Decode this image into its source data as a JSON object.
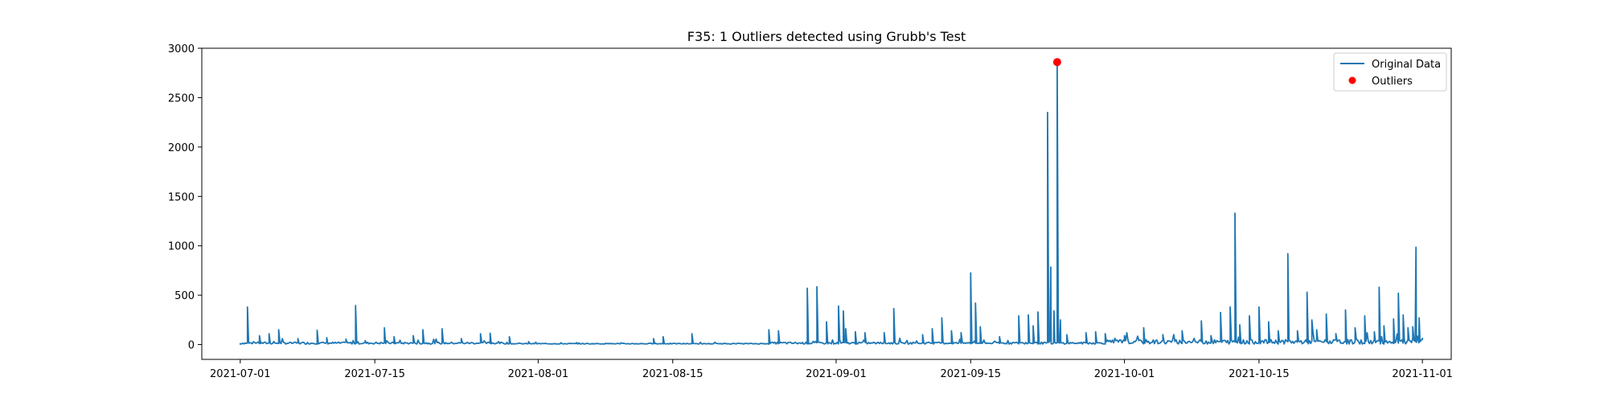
{
  "chart_data": {
    "type": "line",
    "title": "F35: 1 Outliers detected using Grubb's Test",
    "xlabel": "",
    "ylabel": "",
    "x_axis_type": "date",
    "xlim": [
      "2021-06-27",
      "2021-11-04"
    ],
    "ylim": [
      -150,
      3000
    ],
    "yticks": [
      0,
      500,
      1000,
      1500,
      2000,
      2500,
      3000
    ],
    "xticks": [
      "2021-07-01",
      "2021-07-15",
      "2021-08-01",
      "2021-08-15",
      "2021-09-01",
      "2021-09-15",
      "2021-10-01",
      "2021-10-15",
      "2021-11-01"
    ],
    "grid": false,
    "legend": {
      "position": "top-right",
      "entries": [
        "Original Data",
        "Outliers"
      ]
    },
    "colors": {
      "series": "#1f77b4",
      "outlier": "#ff0000"
    },
    "series": [
      {
        "name": "Original Data",
        "baseline_range": [
          "2021-07-01",
          "2021-11-01"
        ],
        "spikes": [
          [
            "2021-07-01",
            5
          ],
          [
            "2021-07-01T18:00",
            380
          ],
          [
            "2021-07-02T12:00",
            20
          ],
          [
            "2021-07-03",
            90
          ],
          [
            "2021-07-04",
            110
          ],
          [
            "2021-07-05",
            150
          ],
          [
            "2021-07-07",
            60
          ],
          [
            "2021-07-09",
            145
          ],
          [
            "2021-07-10",
            70
          ],
          [
            "2021-07-12",
            55
          ],
          [
            "2021-07-13",
            395
          ],
          [
            "2021-07-14",
            40
          ],
          [
            "2021-07-16",
            170
          ],
          [
            "2021-07-17",
            80
          ],
          [
            "2021-07-19",
            90
          ],
          [
            "2021-07-20",
            150
          ],
          [
            "2021-07-22",
            160
          ],
          [
            "2021-07-24",
            60
          ],
          [
            "2021-07-26",
            110
          ],
          [
            "2021-07-27",
            115
          ],
          [
            "2021-07-29",
            80
          ],
          [
            "2021-07-31",
            30
          ],
          [
            "2021-08-05",
            20
          ],
          [
            "2021-08-13",
            60
          ],
          [
            "2021-08-14",
            80
          ],
          [
            "2021-08-17",
            110
          ],
          [
            "2021-08-25",
            150
          ],
          [
            "2021-08-26",
            140
          ],
          [
            "2021-08-29",
            570
          ],
          [
            "2021-08-30",
            585
          ],
          [
            "2021-08-31",
            230
          ],
          [
            "2021-09-01T06:00",
            390
          ],
          [
            "2021-09-01T18:00",
            340
          ],
          [
            "2021-09-02",
            160
          ],
          [
            "2021-09-03",
            130
          ],
          [
            "2021-09-04",
            120
          ],
          [
            "2021-09-06",
            120
          ],
          [
            "2021-09-07",
            365
          ],
          [
            "2021-09-10",
            100
          ],
          [
            "2021-09-11",
            160
          ],
          [
            "2021-09-12",
            270
          ],
          [
            "2021-09-13",
            140
          ],
          [
            "2021-09-14",
            120
          ],
          [
            "2021-09-15",
            725
          ],
          [
            "2021-09-15T12:00",
            420
          ],
          [
            "2021-09-16",
            180
          ],
          [
            "2021-09-18",
            80
          ],
          [
            "2021-09-20",
            290
          ],
          [
            "2021-09-21",
            300
          ],
          [
            "2021-09-21T12:00",
            190
          ],
          [
            "2021-09-22",
            330
          ],
          [
            "2021-09-23",
            2350
          ],
          [
            "2021-09-23T08:00",
            785
          ],
          [
            "2021-09-23T16:00",
            340
          ],
          [
            "2021-09-24",
            2860
          ],
          [
            "2021-09-24T08:00",
            250
          ],
          [
            "2021-09-25",
            100
          ],
          [
            "2021-09-27",
            120
          ],
          [
            "2021-09-28",
            130
          ],
          [
            "2021-09-29",
            110
          ],
          [
            "2021-10-01",
            90
          ],
          [
            "2021-10-03",
            170
          ],
          [
            "2021-10-05",
            100
          ],
          [
            "2021-10-07",
            140
          ],
          [
            "2021-10-09",
            240
          ],
          [
            "2021-10-10",
            90
          ],
          [
            "2021-10-11",
            325
          ],
          [
            "2021-10-12",
            380
          ],
          [
            "2021-10-12T12:00",
            1330
          ],
          [
            "2021-10-13",
            200
          ],
          [
            "2021-10-14",
            290
          ],
          [
            "2021-10-15",
            380
          ],
          [
            "2021-10-16",
            230
          ],
          [
            "2021-10-17",
            140
          ],
          [
            "2021-10-18",
            920
          ],
          [
            "2021-10-19",
            140
          ],
          [
            "2021-10-20",
            530
          ],
          [
            "2021-10-20T12:00",
            250
          ],
          [
            "2021-10-21",
            150
          ],
          [
            "2021-10-22",
            310
          ],
          [
            "2021-10-23",
            110
          ],
          [
            "2021-10-24",
            350
          ],
          [
            "2021-10-25",
            170
          ],
          [
            "2021-10-26",
            290
          ],
          [
            "2021-10-27",
            130
          ],
          [
            "2021-10-27T12:00",
            580
          ],
          [
            "2021-10-28",
            190
          ],
          [
            "2021-10-29",
            260
          ],
          [
            "2021-10-29T12:00",
            520
          ],
          [
            "2021-10-30",
            300
          ],
          [
            "2021-10-30T12:00",
            170
          ],
          [
            "2021-10-31",
            180
          ],
          [
            "2021-10-31T08:00",
            985
          ],
          [
            "2021-10-31T16:00",
            270
          ],
          [
            "2021-11-01",
            70
          ]
        ]
      },
      {
        "name": "Outliers",
        "points": [
          [
            "2021-09-24",
            2860
          ]
        ]
      }
    ]
  }
}
